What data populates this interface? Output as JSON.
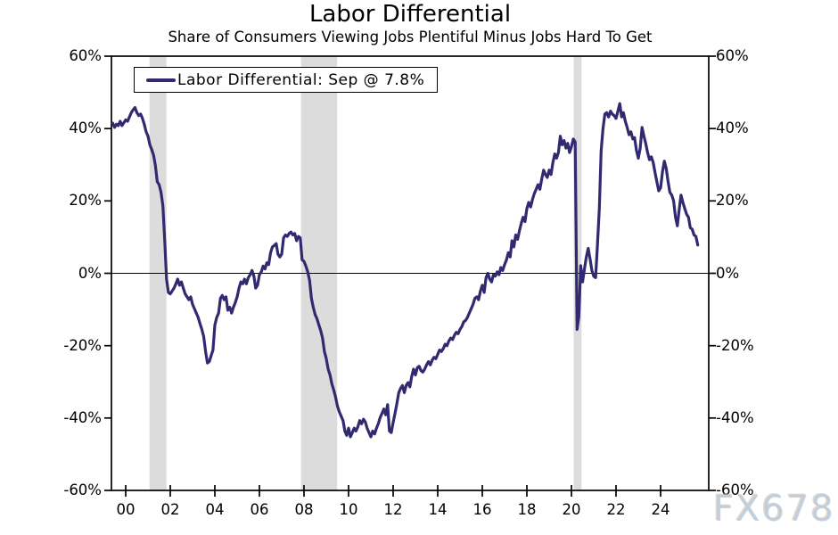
{
  "chart": {
    "title": "Labor Differential",
    "subtitle": "Share of Consumers Viewing Jobs Plentiful Minus Jobs Hard To Get",
    "legend_label": "Labor Differential: Sep @ 7.8%",
    "watermark": "FX678"
  },
  "chart_data": {
    "type": "line",
    "title": "Labor Differential",
    "subtitle": "Share of Consumers Viewing Jobs Plentiful Minus Jobs Hard To Get",
    "series_name": "Labor Differential",
    "latest_point_label": "Sep @ 7.8%",
    "latest_value": 7.8,
    "unit": "%",
    "frequency": "monthly",
    "start_year": 1999,
    "start_month": 6,
    "ylim": [
      -60,
      60
    ],
    "grid": "zero-line-only",
    "legend_position": "top-left-inside",
    "line_color": "#312a70",
    "recession_band_color": "#dcdcdc",
    "y_ticks": [
      "60%",
      "40%",
      "20%",
      "0%",
      "-20%",
      "-40%",
      "-60%"
    ],
    "y_tick_values": [
      60,
      40,
      20,
      0,
      -20,
      -40,
      -60
    ],
    "x_ticks": [
      "00",
      "02",
      "04",
      "06",
      "08",
      "10",
      "12",
      "14",
      "16",
      "18",
      "20",
      "22",
      "24"
    ],
    "x_tick_years": [
      2000,
      2002,
      2004,
      2006,
      2008,
      2010,
      2012,
      2014,
      2016,
      2018,
      2020,
      2022,
      2024
    ],
    "recession_bands_years": [
      [
        2001.07,
        2001.83
      ],
      [
        2007.87,
        2009.49
      ],
      [
        2020.1,
        2020.45
      ]
    ],
    "values": [
      41.5,
      40.3,
      41.2,
      40.8,
      42.0,
      40.8,
      41.6,
      42.4,
      42.0,
      43.2,
      44.4,
      45.2,
      45.8,
      44.4,
      43.6,
      44.0,
      42.8,
      41.2,
      39.1,
      37.9,
      35.5,
      34.2,
      32.6,
      29.8,
      25.3,
      24.5,
      22.4,
      18.7,
      9.0,
      -1.6,
      -5.3,
      -5.7,
      -4.9,
      -4.1,
      -2.9,
      -1.6,
      -3.3,
      -2.4,
      -4.1,
      -5.7,
      -6.5,
      -7.3,
      -6.5,
      -8.6,
      -9.8,
      -11.0,
      -12.2,
      -13.9,
      -15.5,
      -17.5,
      -21.6,
      -24.8,
      -24.4,
      -22.8,
      -21.2,
      -14.3,
      -12.2,
      -11.0,
      -6.9,
      -6.1,
      -7.3,
      -6.5,
      -10.2,
      -9.4,
      -11.0,
      -9.4,
      -8.1,
      -6.5,
      -4.1,
      -2.4,
      -2.9,
      -1.6,
      -2.9,
      -1.2,
      -0.4,
      0.8,
      -0.8,
      -4.1,
      -3.3,
      -0.4,
      0.4,
      2.0,
      1.2,
      2.9,
      2.4,
      5.7,
      7.3,
      7.7,
      8.2,
      5.3,
      4.5,
      5.3,
      9.8,
      10.6,
      10.2,
      11.0,
      11.4,
      10.6,
      11.0,
      9.0,
      10.2,
      9.8,
      3.7,
      3.3,
      2.0,
      0.4,
      -2.0,
      -6.9,
      -9.4,
      -11.4,
      -12.6,
      -14.3,
      -15.9,
      -17.9,
      -21.6,
      -23.6,
      -26.5,
      -28.1,
      -30.6,
      -32.2,
      -34.2,
      -36.7,
      -38.3,
      -39.5,
      -40.7,
      -43.6,
      -44.8,
      -42.8,
      -45.2,
      -44.0,
      -42.8,
      -43.6,
      -42.4,
      -40.7,
      -41.6,
      -40.3,
      -41.1,
      -42.8,
      -44.0,
      -45.2,
      -43.6,
      -44.4,
      -42.8,
      -41.6,
      -39.9,
      -38.7,
      -37.5,
      -39.1,
      -36.3,
      -43.6,
      -44.0,
      -41.2,
      -38.7,
      -36.0,
      -33.0,
      -31.8,
      -31.0,
      -33.0,
      -31.0,
      -30.2,
      -31.4,
      -28.5,
      -26.5,
      -28.1,
      -26.1,
      -25.7,
      -26.9,
      -27.3,
      -26.5,
      -25.3,
      -24.4,
      -25.3,
      -24.0,
      -23.2,
      -23.6,
      -22.4,
      -21.2,
      -21.6,
      -20.8,
      -19.6,
      -20.0,
      -18.7,
      -17.9,
      -18.3,
      -17.1,
      -16.3,
      -16.7,
      -15.5,
      -14.7,
      -13.4,
      -13.0,
      -12.2,
      -11.0,
      -9.8,
      -8.6,
      -6.9,
      -6.5,
      -7.3,
      -4.9,
      -3.3,
      -5.3,
      -1.2,
      0.0,
      -1.6,
      -2.4,
      -0.4,
      -0.8,
      0.4,
      -0.4,
      1.6,
      0.8,
      2.4,
      3.7,
      5.7,
      4.5,
      9.0,
      7.3,
      10.6,
      9.4,
      11.8,
      13.9,
      15.5,
      14.3,
      17.9,
      19.6,
      18.3,
      20.4,
      22.0,
      23.2,
      24.5,
      23.2,
      26.1,
      28.5,
      27.3,
      26.5,
      28.5,
      27.3,
      30.6,
      33.0,
      31.8,
      33.4,
      37.9,
      35.5,
      36.7,
      34.6,
      35.9,
      33.4,
      35.0,
      37.1,
      36.3,
      -15.5,
      -12.0,
      2.1,
      -2.4,
      1.2,
      4.5,
      6.9,
      4.1,
      0.8,
      -0.8,
      -1.2,
      8.0,
      18.0,
      33.8,
      40.0,
      44.0,
      44.4,
      43.2,
      44.8,
      44.0,
      43.6,
      42.8,
      44.8,
      46.9,
      43.2,
      44.4,
      42.0,
      40.3,
      38.3,
      39.1,
      37.1,
      37.5,
      34.0,
      31.8,
      34.5,
      40.3,
      37.9,
      35.9,
      33.4,
      31.4,
      32.2,
      30.6,
      27.8,
      25.3,
      22.8,
      23.6,
      28.0,
      31.0,
      29.0,
      25.5,
      22.4,
      21.6,
      20.0,
      15.5,
      13.1,
      17.5,
      21.6,
      19.6,
      17.9,
      16.3,
      15.5,
      12.6,
      12.2,
      10.6,
      10.2,
      7.8
    ]
  }
}
